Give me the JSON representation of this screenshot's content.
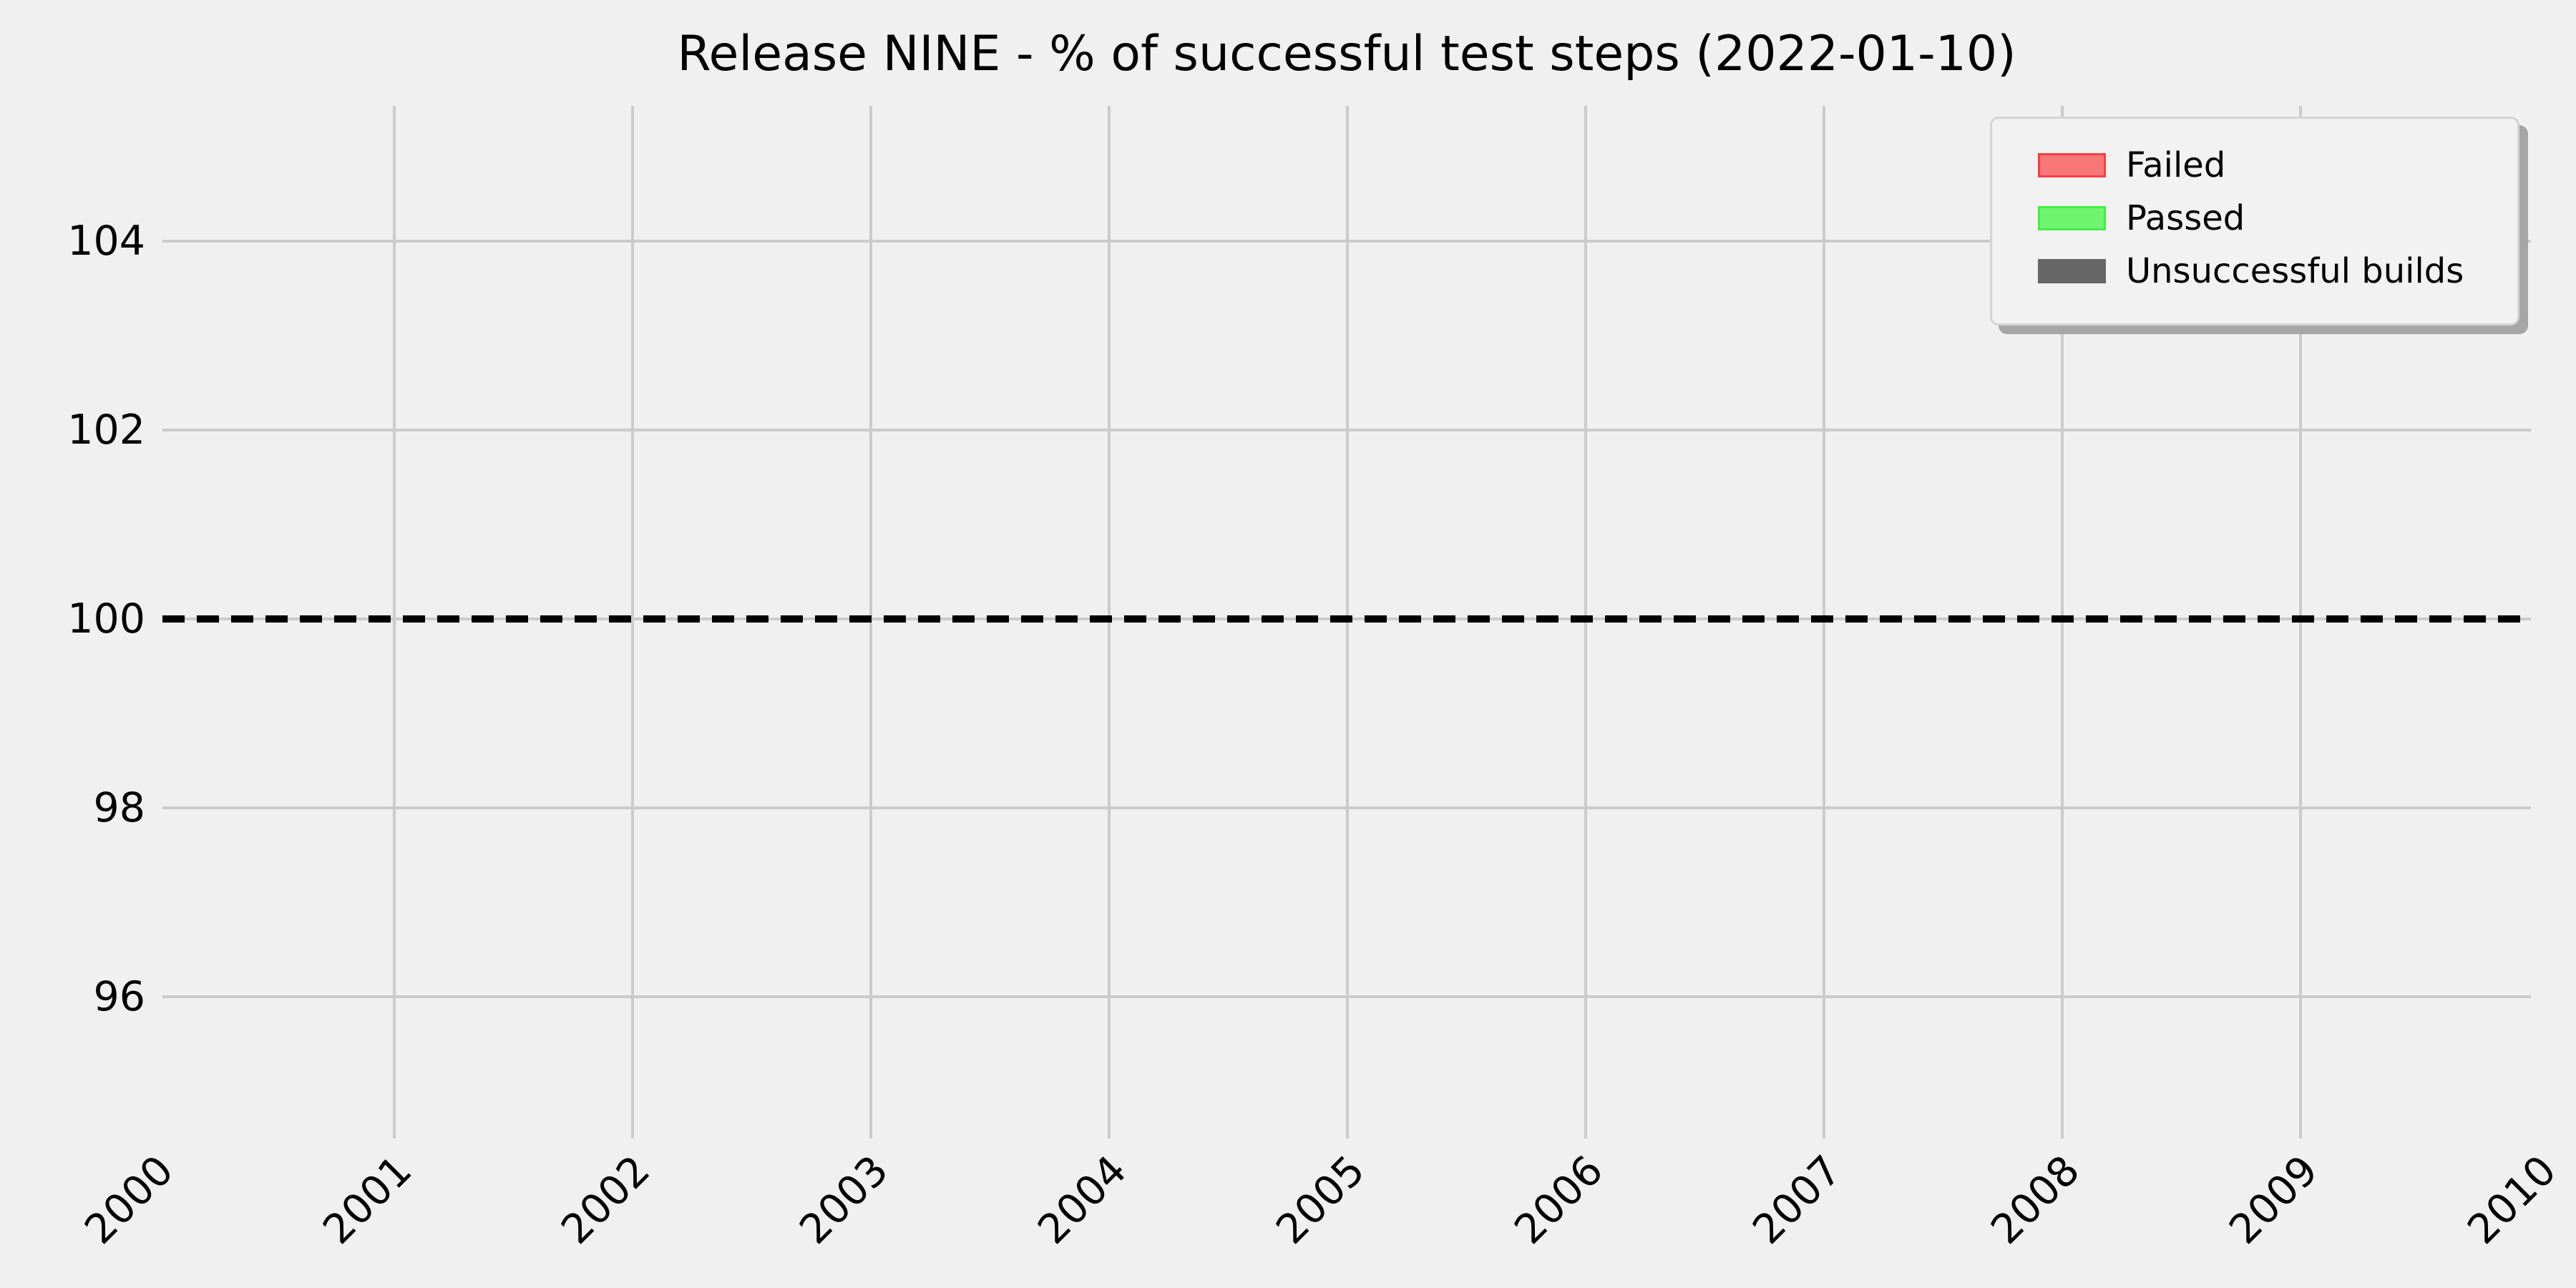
{
  "chart_data": {
    "type": "line",
    "title": "Release NINE - % of successful test steps (2022-01-10)",
    "x_tick_labels": [
      "2000",
      "2001",
      "2002",
      "2003",
      "2004",
      "2005",
      "2006",
      "2007",
      "2008",
      "2009",
      "2010"
    ],
    "x_tick_values": [
      2000,
      2001,
      2002,
      2003,
      2004,
      2005,
      2006,
      2007,
      2008,
      2009,
      2010
    ],
    "y_tick_labels": [
      "96",
      "98",
      "100",
      "102",
      "104"
    ],
    "y_tick_values": [
      96,
      98,
      100,
      102,
      104
    ],
    "xlim": [
      2000,
      2010
    ],
    "ylim": [
      94.5,
      105.5
    ],
    "grid": true,
    "x_tick_rotation_deg": 45,
    "colors": {
      "background": "#f0f0f0",
      "gridline": "#cbcbcb",
      "text": "#000000",
      "legend_background": "#f2f2f2",
      "legend_border": "#d4d4d4",
      "legend_shadow": "#a6a6a6"
    },
    "reference_line": {
      "y": 100,
      "style": "dashed",
      "color": "#000000"
    },
    "series": [],
    "legend": {
      "position": "upper-right",
      "shadow": true,
      "entries": [
        {
          "label": "Failed",
          "fill": "#f87878",
          "edge": "#fb3c42"
        },
        {
          "label": "Passed",
          "fill": "#70f570",
          "edge": "#40f040"
        },
        {
          "label": "Unsuccessful builds",
          "fill": "#666666",
          "edge": "#666666"
        }
      ]
    }
  }
}
